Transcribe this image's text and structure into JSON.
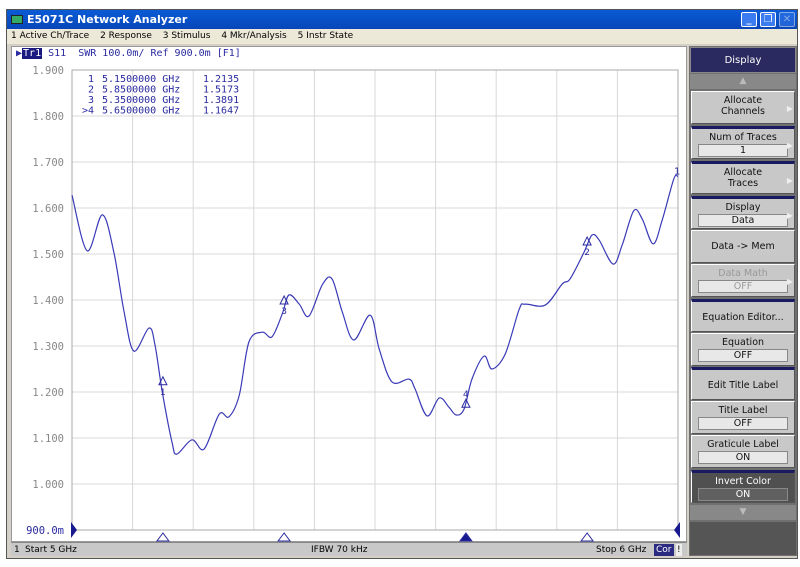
{
  "window": {
    "title": "E5071C Network Analyzer",
    "buttons": [
      "minimize",
      "restore",
      "close"
    ]
  },
  "menu": [
    "1 Active Ch/Trace",
    "2 Response",
    "3 Stimulus",
    "4 Mkr/Analysis",
    "5 Instr State"
  ],
  "trace_header": {
    "badge": "Tr1",
    "text": "S11  SWR 100.0m/ Ref 900.0m [F1]"
  },
  "markers_table": [
    {
      "id": "1",
      "freq": "5.1500000 GHz",
      "value": "1.2135"
    },
    {
      "id": "2",
      "freq": "5.8500000 GHz",
      "value": "1.5173"
    },
    {
      "id": "3",
      "freq": "5.3500000 GHz",
      "value": "1.3891"
    },
    {
      "id": ">4",
      "freq": "5.6500000 GHz",
      "value": "1.1647"
    }
  ],
  "status": {
    "channel": "1",
    "start": "Start 5 GHz",
    "ifbw": "IFBW 70 kHz",
    "stop": "Stop 6 GHz",
    "cor": "Cor",
    "extra": "!"
  },
  "softkeys": {
    "title": "Display",
    "items": [
      {
        "label": "Allocate Channels",
        "arrow": true
      },
      {
        "label": "Num of Traces",
        "value": "1",
        "arrow": true
      },
      {
        "label": "Allocate Traces",
        "arrow": true
      },
      {
        "label": "Display",
        "value": "Data",
        "arrow": true
      },
      {
        "label": "Data -> Mem"
      },
      {
        "label": "Data Math",
        "value": "OFF",
        "disabled": true,
        "arrow": true
      },
      {
        "label": "Equation Editor..."
      },
      {
        "label": "Equation",
        "value": "OFF"
      },
      {
        "label": "Edit Title Label"
      },
      {
        "label": "Title Label",
        "value": "OFF"
      },
      {
        "label": "Graticule Label",
        "value": "ON"
      },
      {
        "label": "Invert Color",
        "value": "ON",
        "dark": true
      }
    ]
  },
  "chart_data": {
    "type": "line",
    "xlim": [
      5.0,
      6.0
    ],
    "x_unit": "GHz",
    "ylim": [
      0.9,
      1.9
    ],
    "ytick_labels": [
      "1.900",
      "1.800",
      "1.700",
      "1.600",
      "1.500",
      "1.400",
      "1.300",
      "1.200",
      "1.100",
      "1.000",
      "900.0m"
    ],
    "grid": true,
    "trace_color": "#3a3ab8",
    "trace_label": "1",
    "series": [
      {
        "x": [
          5.0,
          5.025,
          5.05,
          5.069,
          5.086,
          5.102,
          5.127,
          5.137,
          5.149,
          5.165,
          5.173,
          5.198,
          5.218,
          5.243,
          5.259,
          5.276,
          5.292,
          5.314,
          5.33,
          5.347,
          5.358,
          5.375,
          5.391,
          5.413,
          5.429,
          5.446,
          5.465,
          5.492,
          5.507,
          5.528,
          5.556,
          5.566,
          5.586,
          5.606,
          5.622,
          5.634,
          5.647,
          5.66,
          5.68,
          5.693,
          5.715,
          5.738,
          5.748,
          5.781,
          5.809,
          5.822,
          5.845,
          5.858,
          5.87,
          5.893,
          5.908,
          5.927,
          5.941,
          5.959,
          5.974,
          5.993,
          6.0
        ],
        "y": [
          1.628,
          1.507,
          1.585,
          1.504,
          1.374,
          1.289,
          1.339,
          1.302,
          1.2,
          1.091,
          1.065,
          1.096,
          1.076,
          1.152,
          1.146,
          1.193,
          1.309,
          1.33,
          1.32,
          1.37,
          1.411,
          1.391,
          1.365,
          1.433,
          1.446,
          1.374,
          1.313,
          1.367,
          1.293,
          1.222,
          1.228,
          1.207,
          1.148,
          1.187,
          1.167,
          1.15,
          1.163,
          1.228,
          1.278,
          1.25,
          1.283,
          1.38,
          1.391,
          1.389,
          1.435,
          1.446,
          1.504,
          1.541,
          1.53,
          1.478,
          1.52,
          1.594,
          1.576,
          1.522,
          1.574,
          1.663,
          1.668
        ]
      }
    ],
    "markers": [
      {
        "id": "1",
        "x": 5.15,
        "y": 1.2135
      },
      {
        "id": "2",
        "x": 5.85,
        "y": 1.5173
      },
      {
        "id": "3",
        "x": 5.35,
        "y": 1.3891
      },
      {
        "id": "4",
        "x": 5.65,
        "y": 1.1647,
        "active": true
      }
    ]
  }
}
